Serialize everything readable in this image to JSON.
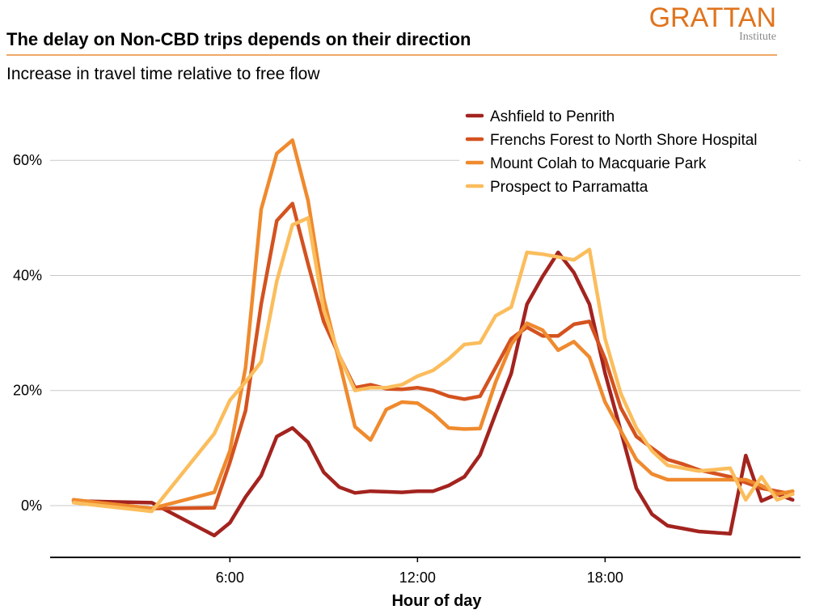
{
  "header": {
    "title": "The delay on Non-CBD trips depends on their direction",
    "subtitle": "Increase in travel time relative to free flow",
    "logo_word": "GRATTAN",
    "logo_sub": "Institute"
  },
  "colors": {
    "accent_rule": "#f0a868",
    "logo": "#e0731c"
  },
  "chart_data": {
    "type": "line",
    "title": "The delay on Non-CBD trips depends on their direction",
    "subtitle": "Increase in travel time relative to free flow",
    "xlabel": "Hour of day",
    "ylabel": "",
    "xlim": [
      0.25,
      24.25
    ],
    "ylim": [
      -0.09,
      0.71
    ],
    "x_ticks": [
      6,
      12,
      18
    ],
    "x_tick_labels": [
      "6:00",
      "12:00",
      "18:00"
    ],
    "y_ticks": [
      0,
      0.2,
      0.4,
      0.6
    ],
    "y_tick_labels": [
      "0%",
      "20%",
      "40%",
      "60%"
    ],
    "grid": "horizontal",
    "legend_position": "top-right",
    "series": [
      {
        "name": "Ashfield to Penrith",
        "color": "#a3231f",
        "x": [
          1,
          3.5,
          5.5,
          6,
          6.5,
          7,
          7.5,
          8,
          8.5,
          9,
          9.5,
          10,
          10.5,
          11,
          11.5,
          12,
          12.5,
          13,
          13.5,
          14,
          14.5,
          15,
          15.5,
          16,
          16.5,
          17,
          17.5,
          18,
          18.5,
          19,
          19.5,
          20,
          20.5,
          21,
          21.5,
          22,
          22.5,
          23,
          23.5,
          24
        ],
        "y": [
          0.008,
          0.005,
          -0.052,
          -0.03,
          0.015,
          0.052,
          0.12,
          0.135,
          0.11,
          0.058,
          0.032,
          0.022,
          0.025,
          0.024,
          0.023,
          0.025,
          0.025,
          0.035,
          0.05,
          0.088,
          0.16,
          0.23,
          0.35,
          0.398,
          0.44,
          0.405,
          0.35,
          0.23,
          0.13,
          0.03,
          -0.015,
          -0.035,
          -0.04,
          -0.045,
          -0.047,
          -0.049,
          0.087,
          0.008,
          0.02,
          0.01
        ]
      },
      {
        "name": "Frenchs Forest to North Shore Hospital",
        "color": "#d4521f",
        "x": [
          1,
          3.5,
          4,
          5.5,
          6,
          6.5,
          7,
          7.5,
          8,
          8.5,
          9,
          9.5,
          10,
          10.5,
          11,
          11.5,
          12,
          12.5,
          13,
          13.5,
          14,
          14.5,
          15,
          15.5,
          16,
          16.5,
          17,
          17.5,
          18,
          18.5,
          19,
          19.5,
          20,
          20.5,
          21,
          22,
          22.5,
          23,
          23.5,
          24
        ],
        "y": [
          0.01,
          -0.005,
          -0.005,
          -0.004,
          0.075,
          0.165,
          0.35,
          0.495,
          0.525,
          0.42,
          0.32,
          0.26,
          0.205,
          0.21,
          0.203,
          0.202,
          0.205,
          0.2,
          0.19,
          0.185,
          0.19,
          0.24,
          0.29,
          0.31,
          0.295,
          0.295,
          0.315,
          0.32,
          0.255,
          0.17,
          0.12,
          0.1,
          0.08,
          0.072,
          0.062,
          0.05,
          0.04,
          0.03,
          0.025,
          0.02
        ]
      },
      {
        "name": "Mount Colah to Macquarie Park",
        "color": "#ef8a2e",
        "x": [
          1,
          3.5,
          5.5,
          6,
          6.5,
          7,
          7.5,
          8,
          8.5,
          9,
          9.5,
          10,
          10.5,
          11,
          11.5,
          12,
          12.5,
          13,
          13.5,
          14,
          14.5,
          15,
          15.5,
          16,
          16.5,
          17,
          17.5,
          18,
          18.5,
          19,
          19.5,
          20,
          21,
          22,
          22.5,
          23,
          23.5,
          24
        ],
        "y": [
          0.01,
          -0.005,
          0.023,
          0.095,
          0.24,
          0.515,
          0.612,
          0.635,
          0.53,
          0.36,
          0.25,
          0.137,
          0.114,
          0.167,
          0.18,
          0.178,
          0.16,
          0.135,
          0.133,
          0.134,
          0.215,
          0.28,
          0.317,
          0.305,
          0.27,
          0.285,
          0.258,
          0.18,
          0.13,
          0.08,
          0.055,
          0.045,
          0.045,
          0.045,
          0.045,
          0.035,
          0.02,
          0.025
        ]
      },
      {
        "name": "Prospect to Parramatta",
        "color": "#fbbd5c",
        "x": [
          1,
          3.5,
          5.5,
          6,
          6.5,
          7,
          7.5,
          8,
          8.5,
          9,
          9.5,
          10,
          10.5,
          11,
          11.5,
          12,
          12.5,
          13,
          13.5,
          14,
          14.5,
          15,
          15.5,
          16,
          16.5,
          17,
          17.5,
          18,
          18.5,
          19,
          19.5,
          20,
          21,
          22,
          22.5,
          23,
          23.5,
          24
        ],
        "y": [
          0.005,
          -0.01,
          0.125,
          0.183,
          0.215,
          0.25,
          0.39,
          0.488,
          0.5,
          0.34,
          0.26,
          0.2,
          0.205,
          0.205,
          0.21,
          0.225,
          0.235,
          0.255,
          0.28,
          0.283,
          0.33,
          0.345,
          0.44,
          0.437,
          0.432,
          0.427,
          0.445,
          0.29,
          0.195,
          0.135,
          0.095,
          0.07,
          0.06,
          0.065,
          0.01,
          0.05,
          0.01,
          0.02
        ]
      }
    ]
  }
}
